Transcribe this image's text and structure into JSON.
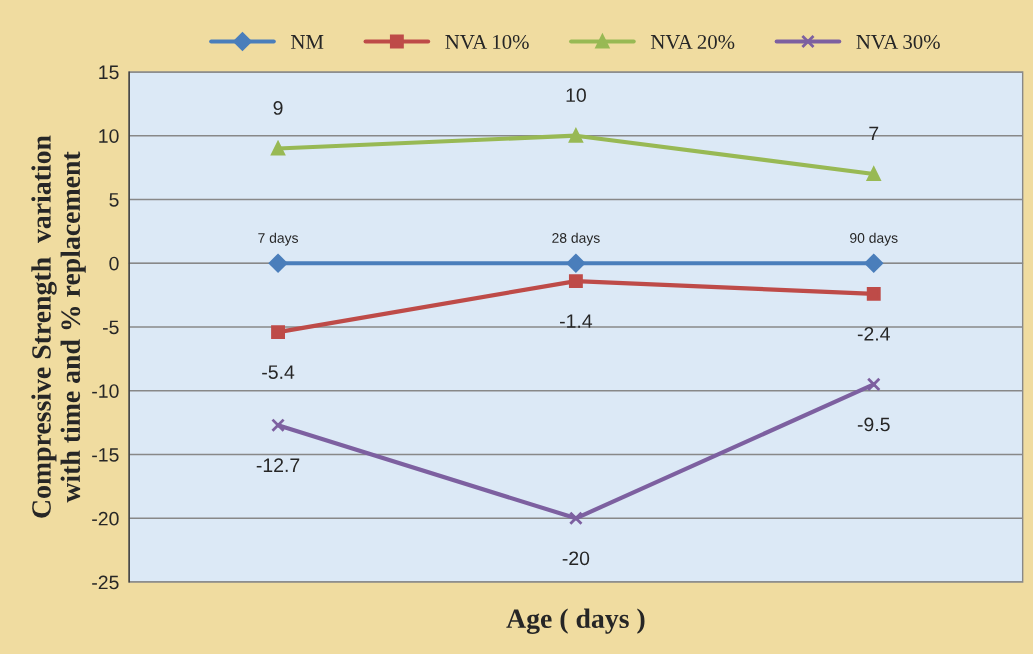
{
  "chart_data": {
    "type": "line",
    "xlabel": "Age ( days )",
    "ylabel": "Compressive Strength  variation\nwith time and % replacement",
    "categories": [
      "7 days",
      "28 days",
      "90 days"
    ],
    "series": [
      {
        "name": "NM",
        "color": "#4a7ebb",
        "marker": "diamond",
        "values": [
          0,
          0,
          0
        ]
      },
      {
        "name": "NVA 10%",
        "color": "#be4b48",
        "marker": "square",
        "values": [
          -5.4,
          -1.4,
          -2.4
        ],
        "value_labels": [
          "-5.4",
          "-1.4",
          "-2.4"
        ]
      },
      {
        "name": "NVA 20%",
        "color": "#98b954",
        "marker": "triangle",
        "values": [
          9,
          10,
          7
        ],
        "value_labels": [
          "9",
          "10",
          "7"
        ]
      },
      {
        "name": "NVA 30%",
        "color": "#7d60a0",
        "marker": "cross",
        "values": [
          -12.7,
          -20,
          -9.5
        ],
        "value_labels": [
          "-12.7",
          "-20",
          "-9.5"
        ]
      }
    ],
    "ylim": [
      -25,
      15
    ],
    "yticks": [
      -25,
      -20,
      -15,
      -10,
      -5,
      0,
      5,
      10,
      15
    ],
    "grid": "y",
    "legend": "top",
    "line_style": "solid"
  }
}
